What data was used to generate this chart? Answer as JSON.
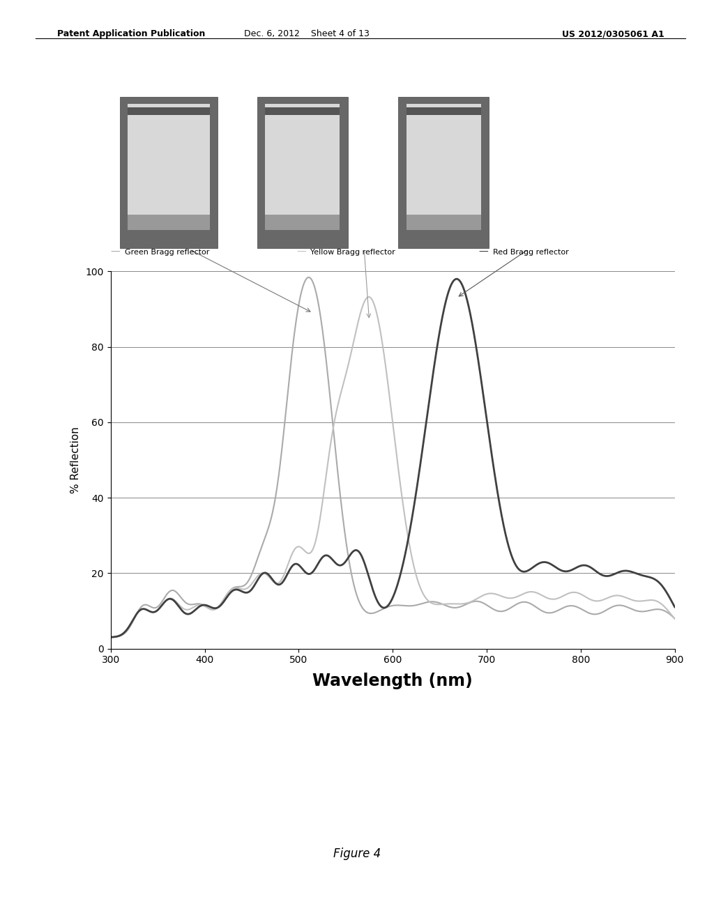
{
  "xlabel": "Wavelength (nm)",
  "ylabel": "% Reflection",
  "xlim": [
    300,
    900
  ],
  "ylim": [
    0,
    100
  ],
  "xticks": [
    300,
    400,
    500,
    600,
    700,
    800,
    900
  ],
  "yticks": [
    0,
    20,
    40,
    60,
    80,
    100
  ],
  "legend_labels": [
    "Green Bragg reflector",
    "Yellow Bragg reflector",
    "Red Bragg reflector"
  ],
  "green_color": "#aaaaaa",
  "yellow_color": "#c0c0c0",
  "red_color": "#404040",
  "figure_caption": "Figure 4",
  "header_left": "Patent Application Publication",
  "header_center": "Dec. 6, 2012    Sheet 4 of 13",
  "header_right": "US 2012/0305061 A1",
  "bg_color": "#ffffff"
}
